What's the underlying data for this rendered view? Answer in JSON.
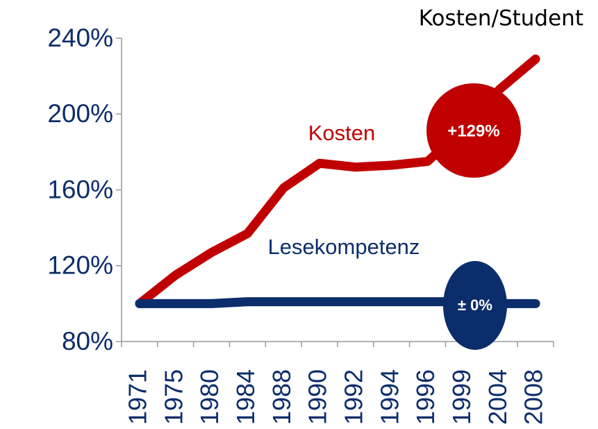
{
  "chart_data": {
    "type": "line",
    "subtitle": "Kosten/Student",
    "categories": [
      "1971",
      "1975",
      "1980",
      "1984",
      "1988",
      "1990",
      "1992",
      "1994",
      "1996",
      "1999",
      "2004",
      "2008"
    ],
    "series": [
      {
        "name": "Kosten",
        "color": "#c00000",
        "values": [
          100,
          115,
          127,
          137,
          161,
          174,
          172,
          173,
          175,
          192,
          213,
          229
        ]
      },
      {
        "name": "Lesekompetenz",
        "color": "#0b2d6b",
        "values": [
          100,
          100,
          100,
          101,
          101,
          101,
          101,
          101,
          101,
          101,
          100,
          100
        ]
      }
    ],
    "annotations": [
      "+129%",
      "± 0%"
    ],
    "ylim": [
      80,
      240
    ],
    "yticks": [
      {
        "value": 80,
        "label": "80%"
      },
      {
        "value": 120,
        "label": "120%"
      },
      {
        "value": 160,
        "label": "160%"
      },
      {
        "value": 200,
        "label": "200%"
      },
      {
        "value": 240,
        "label": "240%"
      }
    ]
  }
}
